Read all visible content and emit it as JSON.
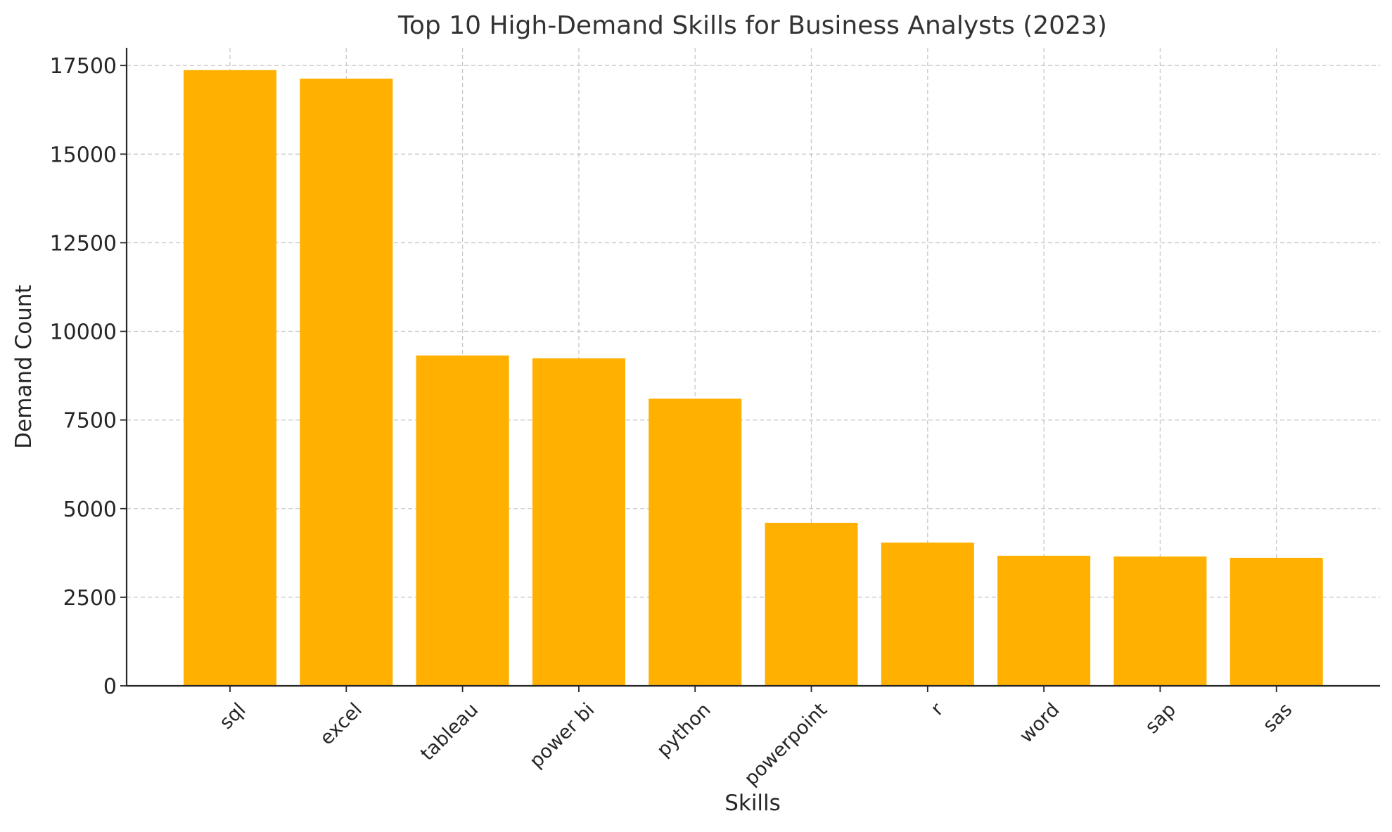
{
  "chart_data": {
    "type": "bar",
    "title": "Top 10 High-Demand Skills for Business Analysts (2023)",
    "xlabel": "Skills",
    "ylabel": "Demand Count",
    "categories": [
      "sql",
      "excel",
      "tableau",
      "power bi",
      "python",
      "powerpoint",
      "r",
      "word",
      "sap",
      "sas"
    ],
    "values": [
      17370,
      17130,
      9320,
      9240,
      8100,
      4600,
      4040,
      3670,
      3650,
      3610
    ],
    "ylim": [
      0,
      18000
    ],
    "yticks": [
      0,
      2500,
      5000,
      7500,
      10000,
      12500,
      15000,
      17500
    ],
    "ytick_labels": [
      "0",
      "2500",
      "5000",
      "7500",
      "10000",
      "12500",
      "15000",
      "17500"
    ],
    "xtick_rotation_deg": 45,
    "grid": true,
    "bar_color": "#ffb000",
    "legend": "none"
  }
}
